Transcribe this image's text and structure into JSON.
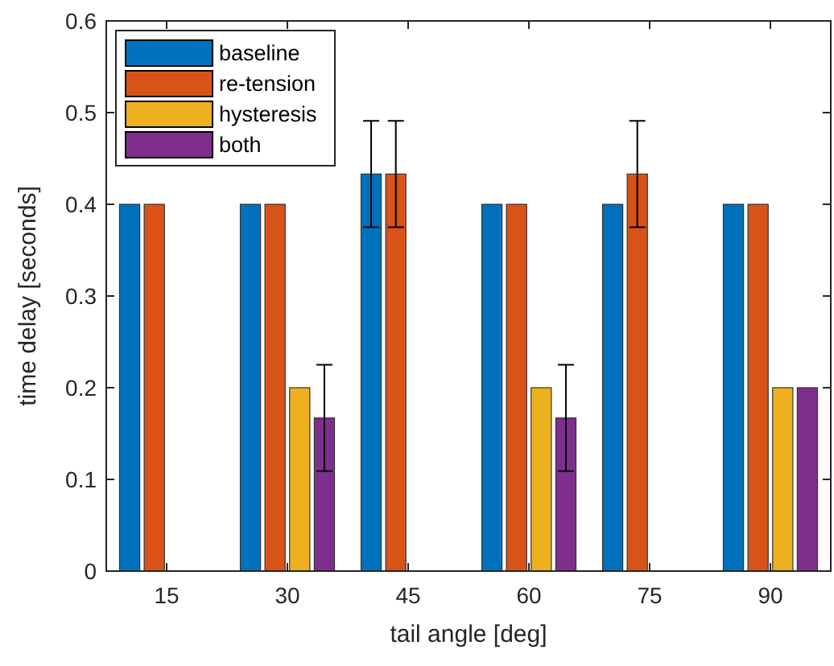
{
  "chart_data": {
    "type": "bar",
    "xlabel": "tail angle [deg]",
    "ylabel": "time delay [seconds]",
    "categories": [
      "15",
      "30",
      "45",
      "60",
      "75",
      "90"
    ],
    "series": [
      {
        "name": "baseline",
        "color": "#0072bd",
        "values": [
          0.4,
          0.4,
          0.433,
          0.4,
          0.4,
          0.4
        ],
        "errors": [
          null,
          null,
          0.058,
          null,
          null,
          null
        ]
      },
      {
        "name": "re-tension",
        "color": "#d95319",
        "values": [
          0.4,
          0.4,
          0.433,
          0.4,
          0.433,
          0.4
        ],
        "errors": [
          null,
          null,
          0.058,
          null,
          0.058,
          null
        ]
      },
      {
        "name": "hysteresis",
        "color": "#edb120",
        "values": [
          0,
          0.2,
          0,
          0.2,
          0,
          0.2
        ]
      },
      {
        "name": "both",
        "color": "#7e2f8e",
        "values": [
          0,
          0.167,
          0,
          0.167,
          0,
          0.2
        ],
        "errors": [
          null,
          0.058,
          null,
          0.058,
          null,
          null
        ]
      }
    ],
    "ylim": [
      0,
      0.6
    ],
    "yticks": [
      0,
      0.1,
      0.2,
      0.3,
      0.4,
      0.5,
      0.6
    ],
    "legend": "top left",
    "grid": false
  }
}
